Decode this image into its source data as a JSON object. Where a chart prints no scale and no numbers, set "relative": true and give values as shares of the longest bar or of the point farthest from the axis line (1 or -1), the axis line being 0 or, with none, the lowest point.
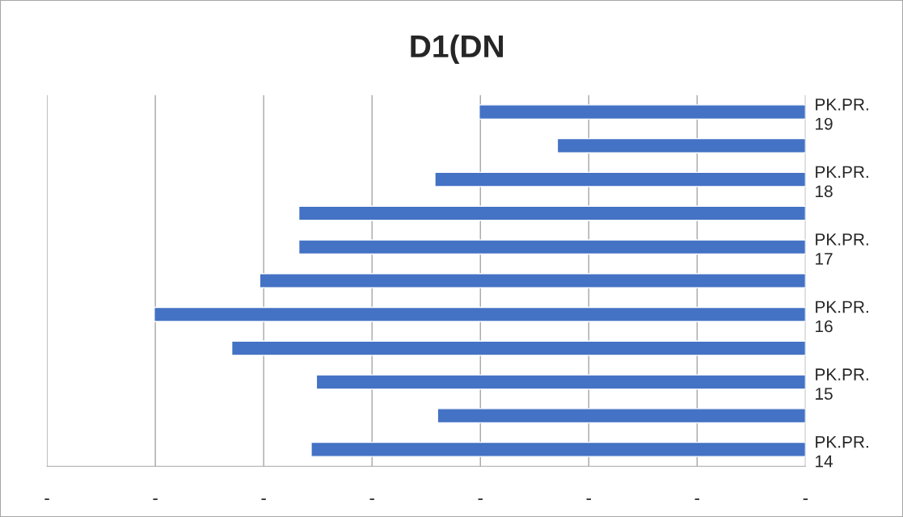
{
  "chart_data": {
    "type": "bar",
    "orientation": "horizontal",
    "relative": true,
    "title": "D1(DN",
    "categories": [
      "PK.PR. 19",
      null,
      "PK.PR. 18",
      null,
      "PK.PR. 17",
      null,
      "PK.PR. 16",
      null,
      "PK.PR. 15",
      null,
      "PK.PR. 14"
    ],
    "values": [
      -0.501,
      -0.381,
      -0.569,
      -0.778,
      -0.778,
      -0.838,
      -1,
      -0.881,
      -0.751,
      -0.565,
      -0.759
    ],
    "color": "#4472c4",
    "annotations": [
      "-",
      "-",
      "-",
      "-",
      "-",
      "-",
      "-",
      "-"
    ],
    "grid": "x",
    "legend": false
  }
}
